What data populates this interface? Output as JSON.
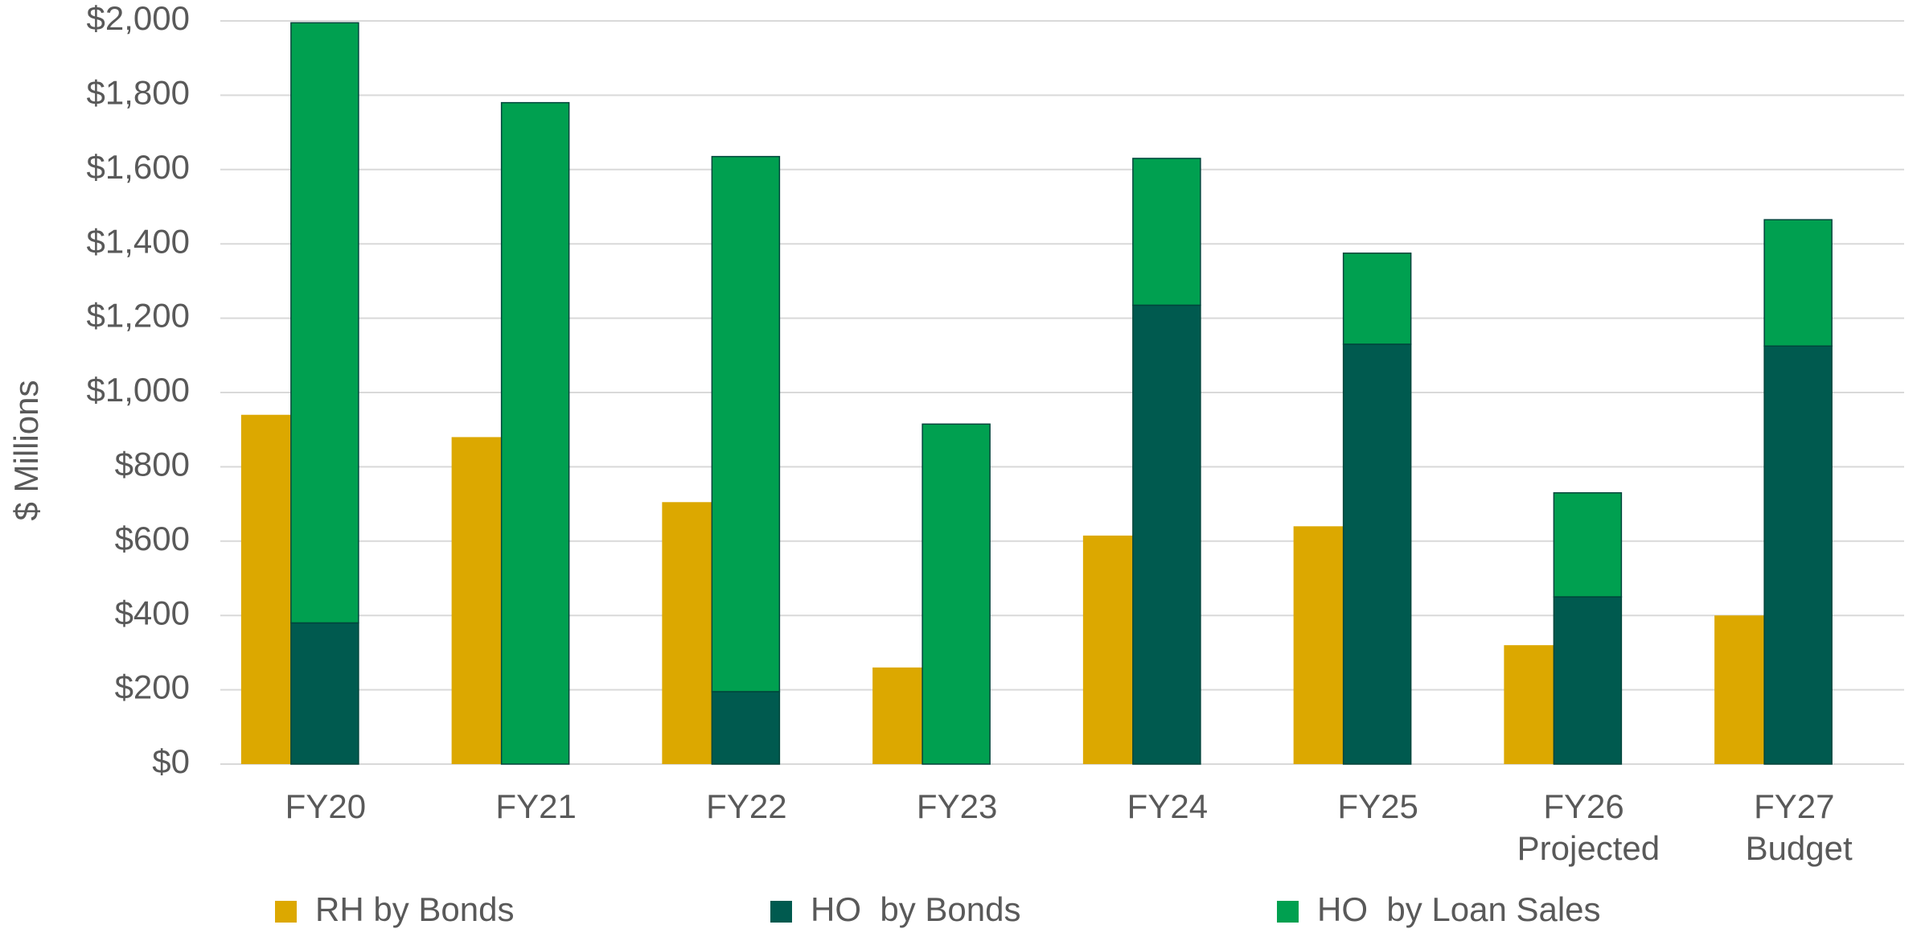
{
  "chart_data": {
    "type": "bar",
    "y_label": "$ Millions",
    "categories": [
      "FY20",
      "FY21",
      "FY22",
      "FY23",
      "FY24",
      "FY25",
      "FY26 Projected",
      "FY27 Budget"
    ],
    "series": [
      {
        "name": "RH by Bonds",
        "color": "#dca800",
        "values": [
          940,
          880,
          705,
          260,
          615,
          640,
          320,
          400
        ]
      },
      {
        "name": "HO  by Bonds",
        "color": "#005a4f",
        "values": [
          380,
          0,
          195,
          0,
          1235,
          1130,
          450,
          1125
        ]
      },
      {
        "name": "HO  by Loan Sales",
        "color": "#00a050",
        "values": [
          1615,
          1780,
          1440,
          915,
          395,
          245,
          280,
          340
        ]
      }
    ],
    "ylim": [
      0,
      2000
    ],
    "yticks": [
      {
        "value": 0,
        "label": "$0"
      },
      {
        "value": 200,
        "label": "$200"
      },
      {
        "value": 400,
        "label": "$400"
      },
      {
        "value": 600,
        "label": "$600"
      },
      {
        "value": 800,
        "label": "$800"
      },
      {
        "value": 1000,
        "label": "$1,000"
      },
      {
        "value": 1200,
        "label": "$1,200"
      },
      {
        "value": 1400,
        "label": "$1,400"
      },
      {
        "value": 1600,
        "label": "$1,600"
      },
      {
        "value": 1800,
        "label": "$1,800"
      },
      {
        "value": 2000,
        "label": "$2,000"
      }
    ],
    "grid": true,
    "legend": "bottom"
  }
}
